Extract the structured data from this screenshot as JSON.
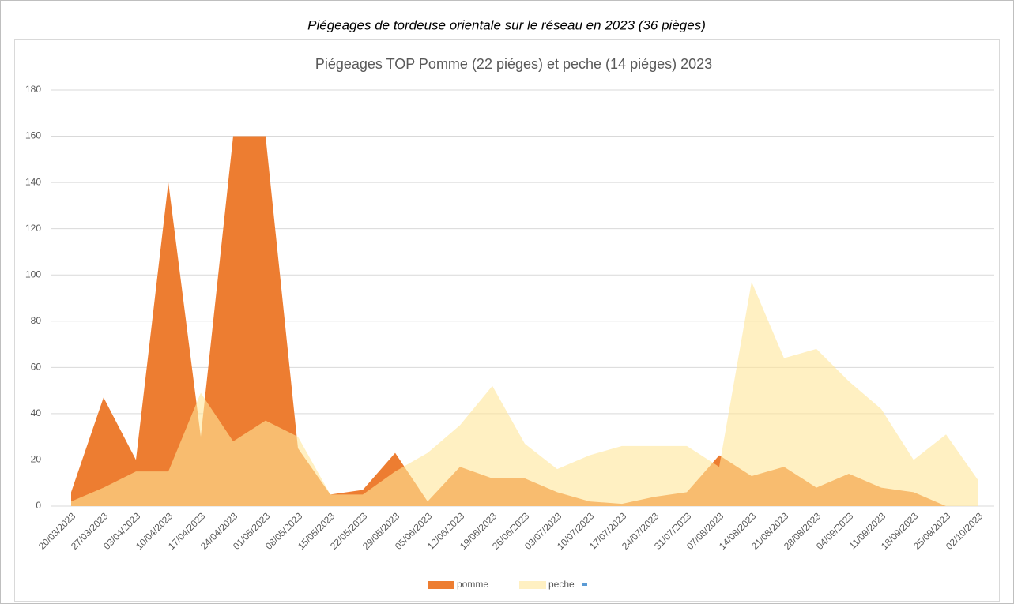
{
  "chart_data": {
    "type": "area",
    "heading": "Piégeages de tordeuse orientale sur le réseau en 2023 (36 pièges)",
    "title": "Piégeages TOP Pomme  (22 piéges) et peche (14 piéges) 2023",
    "categories": [
      "20/03/2023",
      "27/03/2023",
      "03/04/2023",
      "10/04/2023",
      "17/04/2023",
      "24/04/2023",
      "01/05/2023",
      "08/05/2023",
      "15/05/2023",
      "22/05/2023",
      "29/05/2023",
      "05/06/2023",
      "12/06/2023",
      "19/06/2023",
      "26/06/2023",
      "03/07/2023",
      "10/07/2023",
      "17/07/2023",
      "24/07/2023",
      "31/07/2023",
      "07/08/2023",
      "14/08/2023",
      "21/08/2023",
      "28/08/2023",
      "04/09/2023",
      "11/09/2023",
      "18/09/2023",
      "25/09/2023",
      "02/10/2023"
    ],
    "series": [
      {
        "name": "pomme",
        "color": "#ed7d31",
        "values": [
          6,
          47,
          20,
          140,
          30,
          160,
          160,
          25,
          5,
          7,
          23,
          2,
          17,
          12,
          12,
          6,
          2,
          1,
          4,
          6,
          22,
          13,
          17,
          8,
          14,
          8,
          6,
          0,
          null
        ]
      },
      {
        "name": "peche",
        "color": "#ffe699",
        "values": [
          2,
          8,
          15,
          15,
          49,
          28,
          37,
          30,
          5,
          5,
          15,
          23,
          35,
          52,
          27,
          16,
          22,
          26,
          26,
          26,
          17,
          97,
          64,
          68,
          54,
          42,
          20,
          31,
          11
        ]
      }
    ],
    "ylim": [
      0,
      180
    ],
    "yticks": [
      0,
      20,
      40,
      60,
      80,
      100,
      120,
      140,
      160,
      180
    ],
    "grid": true,
    "legend": "bottom"
  }
}
